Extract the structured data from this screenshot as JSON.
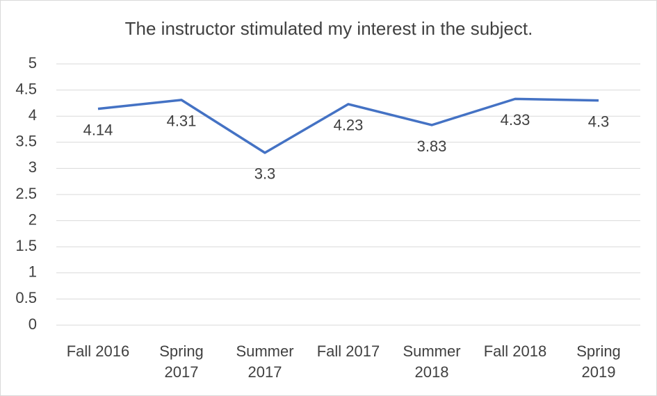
{
  "chart_data": {
    "type": "line",
    "title": "The instructor stimulated my interest in the subject.",
    "categories": [
      "Fall 2016",
      "Spring\n2017",
      "Summer\n2017",
      "Fall 2017",
      "Summer\n2018",
      "Fall 2018",
      "Spring\n2019"
    ],
    "values": [
      4.14,
      4.31,
      3.3,
      4.23,
      3.83,
      4.33,
      4.3
    ],
    "color": "#4472c4",
    "ylim": [
      0,
      5
    ],
    "yticks": [
      0,
      0.5,
      1,
      1.5,
      2,
      2.5,
      3,
      3.5,
      4,
      4.5,
      5
    ],
    "grid": true
  }
}
